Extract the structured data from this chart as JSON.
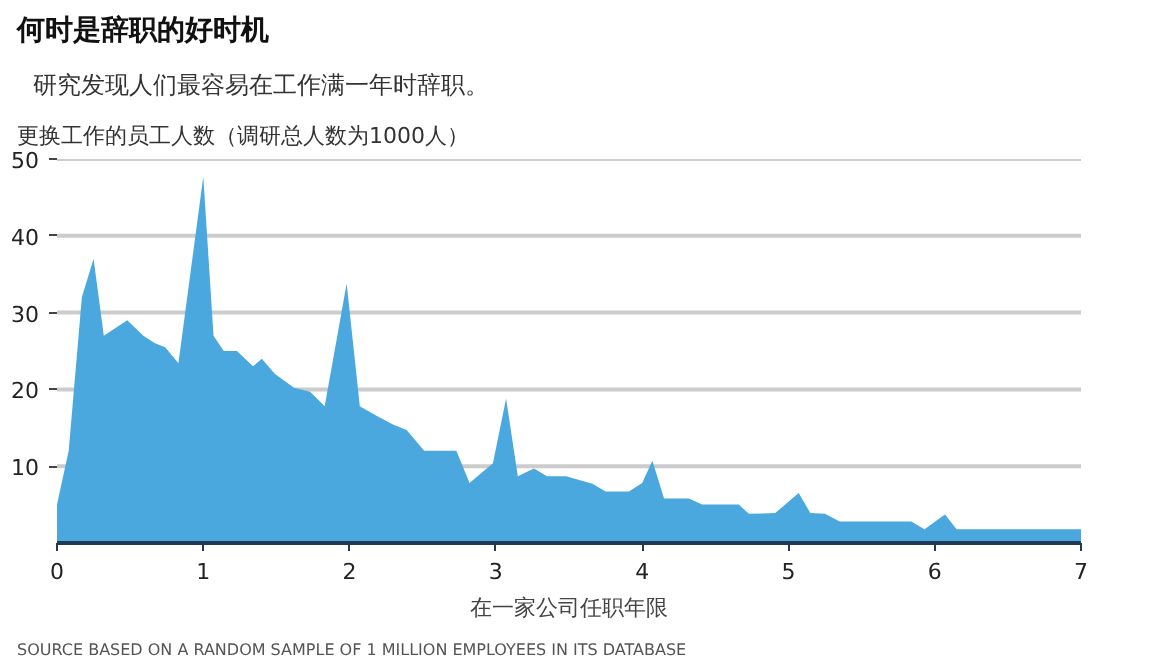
{
  "chart_data": {
    "type": "area",
    "title": "何时是辞职的好时机",
    "subtitle": "研究发现人们最容易在工作满一年时辞职。",
    "ylabel": "更换工作的员工人数（调研总人数为1000人）",
    "xlabel": "在一家公司任职年限",
    "annotations": [
      "SOURCE BASED ON A RANDOM SAMPLE OF 1 MILLION EMPLOYEES IN ITS DATABASE"
    ],
    "x": [
      0,
      0.08,
      0.17,
      0.25,
      0.32,
      0.48,
      0.59,
      0.67,
      0.74,
      0.83,
      1.0,
      1.07,
      1.14,
      1.23,
      1.34,
      1.4,
      1.49,
      1.62,
      1.73,
      1.83,
      1.98,
      2.07,
      2.19,
      2.3,
      2.39,
      2.51,
      2.73,
      2.82,
      2.98,
      3.07,
      3.15,
      3.26,
      3.35,
      3.48,
      3.66,
      3.75,
      3.91,
      4.0,
      4.07,
      4.15,
      4.32,
      4.41,
      4.66,
      4.73,
      4.91,
      5.07,
      5.15,
      5.25,
      5.35,
      5.84,
      5.93,
      6.07,
      6.15,
      6.98,
      7
    ],
    "series": [
      {
        "color": "#4aa8df",
        "values": [
          5,
          12,
          32,
          37,
          27,
          29,
          27,
          26,
          25.5,
          23.4,
          47.7,
          27,
          25,
          25,
          23,
          24,
          22,
          20.2,
          19.7,
          17.8,
          33.8,
          17.8,
          16.5,
          15.4,
          14.7,
          12,
          12,
          7.8,
          10.4,
          18.8,
          8.7,
          9.7,
          8.7,
          8.7,
          7.7,
          6.7,
          6.7,
          7.8,
          10.7,
          5.8,
          5.8,
          5,
          5,
          3.8,
          3.9,
          6.5,
          3.9,
          3.8,
          2.8,
          2.8,
          1.8,
          3.7,
          1.8,
          1.8,
          1.8
        ]
      }
    ],
    "xlim": [
      0,
      7
    ],
    "ylim": [
      0,
      50
    ],
    "xticks": [
      0,
      1,
      2,
      3,
      4,
      5,
      6,
      7
    ],
    "yticks": [
      10,
      20,
      30,
      40,
      50
    ],
    "grid": "y"
  }
}
